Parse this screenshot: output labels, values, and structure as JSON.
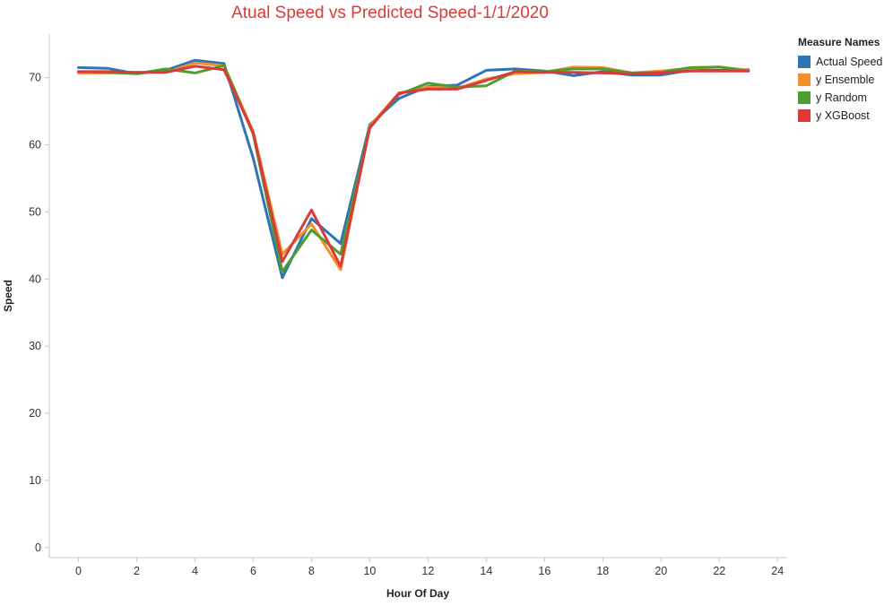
{
  "chart_data": {
    "type": "line",
    "title": "Atual Speed vs Predicted Speed-1/1/2020",
    "xlabel": "Hour Of Day",
    "ylabel": "Speed",
    "xlim": [
      -1,
      24.3
    ],
    "ylim": [
      -1.5,
      76.5
    ],
    "xticks": [
      0,
      2,
      4,
      6,
      8,
      10,
      12,
      14,
      16,
      18,
      20,
      22,
      24
    ],
    "yticks": [
      0,
      10,
      20,
      30,
      40,
      50,
      60,
      70
    ],
    "grid": false,
    "legend_title": "Measure Names",
    "legend_position": "top-right",
    "x": [
      0,
      1,
      2,
      3,
      4,
      5,
      6,
      7,
      8,
      9,
      10,
      11,
      12,
      13,
      14,
      15,
      16,
      17,
      18,
      19,
      20,
      21,
      22,
      23
    ],
    "series": [
      {
        "name": "Actual Speed",
        "color": "#2e75b6",
        "values": [
          71.5,
          71.4,
          70.6,
          71.1,
          72.6,
          72.1,
          58.0,
          40.2,
          49.0,
          45.3,
          63.0,
          66.9,
          68.7,
          68.9,
          71.1,
          71.3,
          71.0,
          70.3,
          70.9,
          70.4,
          70.4,
          71.1,
          71.1,
          71.2
        ]
      },
      {
        "name": "y Ensemble",
        "color": "#f28e2b",
        "values": [
          70.7,
          70.7,
          70.8,
          70.8,
          72.2,
          71.8,
          62.0,
          43.7,
          48.2,
          41.4,
          62.8,
          67.7,
          68.6,
          68.4,
          69.8,
          70.6,
          70.8,
          71.6,
          71.5,
          70.7,
          71.0,
          71.4,
          71.6,
          71.1
        ]
      },
      {
        "name": "y Random",
        "color": "#4f9c2f",
        "values": [
          70.9,
          70.8,
          70.6,
          71.3,
          70.7,
          71.8,
          61.6,
          41.1,
          47.3,
          43.7,
          62.6,
          67.5,
          69.2,
          68.6,
          68.8,
          71.0,
          70.9,
          71.3,
          71.3,
          70.7,
          70.8,
          71.5,
          71.6,
          71.0
        ]
      },
      {
        "name": "y XGBoost",
        "color": "#d93a3a",
        "values": [
          70.9,
          70.9,
          70.8,
          70.8,
          71.7,
          71.2,
          61.8,
          42.6,
          50.3,
          41.9,
          62.5,
          67.7,
          68.3,
          68.3,
          69.6,
          70.9,
          70.8,
          70.8,
          70.7,
          70.6,
          70.7,
          71.0,
          71.0,
          71.0
        ]
      }
    ]
  }
}
